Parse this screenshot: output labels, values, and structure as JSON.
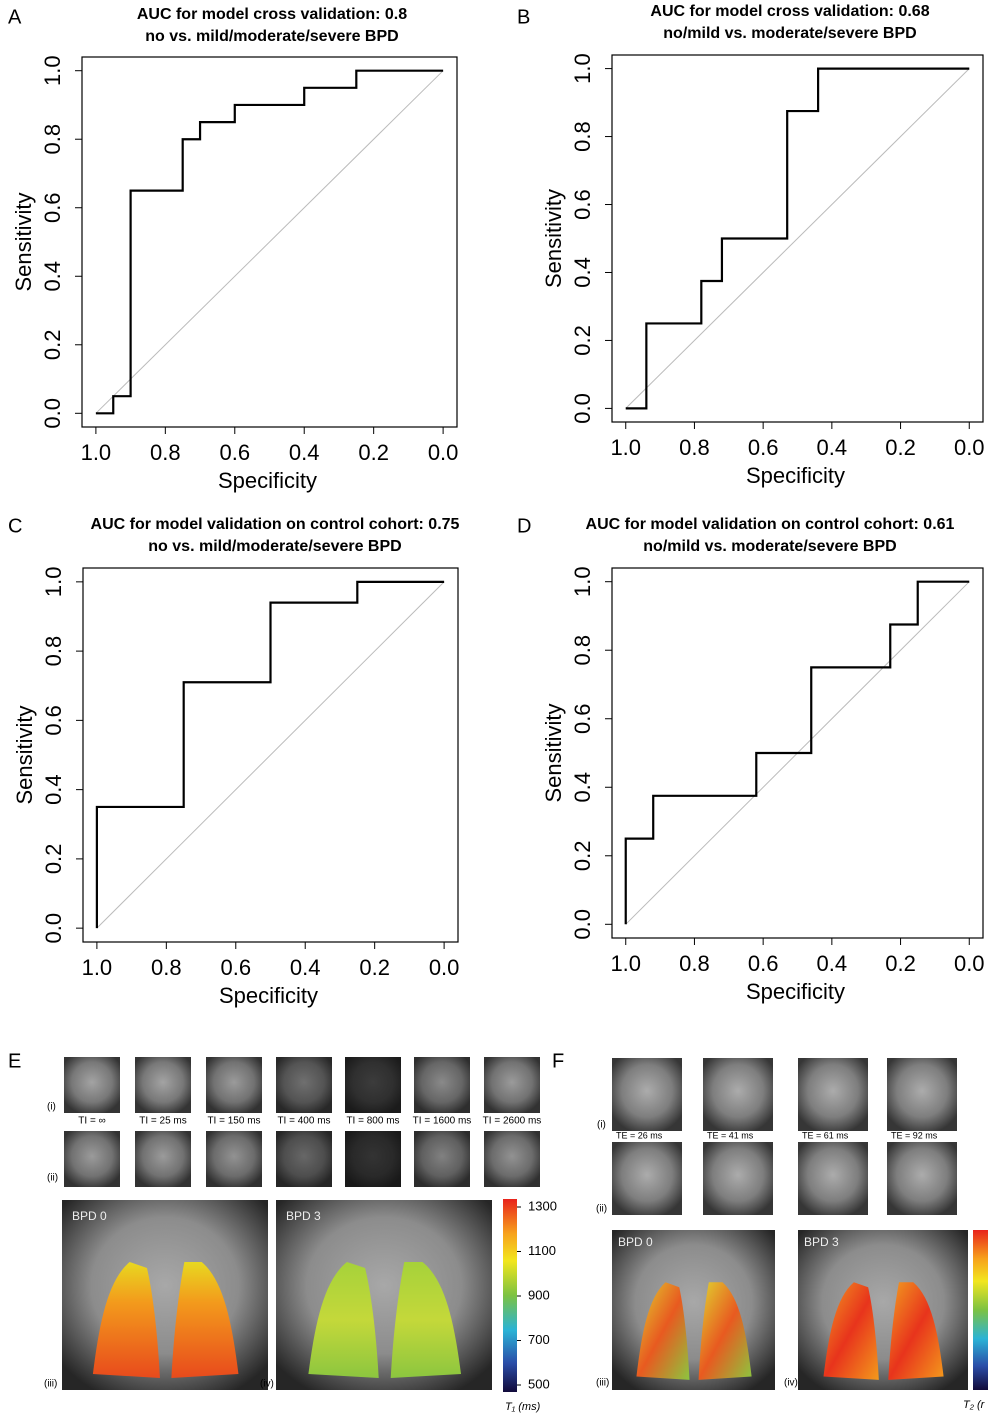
{
  "chart_data": [
    {
      "type": "line",
      "panel_label": "A",
      "title": "AUC for model cross validation:  0.8",
      "subtitle": "no vs. mild/moderate/severe BPD",
      "xlabel": "Specificity",
      "ylabel": "Sensitivity",
      "color": "#000000",
      "x": [
        1.0,
        0.95,
        0.95,
        0.9,
        0.9,
        0.75,
        0.75,
        0.7,
        0.7,
        0.6,
        0.6,
        0.4,
        0.4,
        0.25,
        0.25,
        0.0
      ],
      "values": [
        0.0,
        0.0,
        0.05,
        0.05,
        0.65,
        0.65,
        0.8,
        0.8,
        0.85,
        0.85,
        0.9,
        0.9,
        0.95,
        0.95,
        1.0,
        1.0
      ],
      "xlim": [
        1.04,
        -0.04
      ],
      "ylim": [
        -0.04,
        1.04
      ],
      "xticks": [
        {
          "value": 1,
          "label": "1.0"
        },
        0.8,
        0.6,
        0.4,
        0.2,
        {
          "value": 0,
          "label": "0.0"
        }
      ],
      "yticks": [
        {
          "value": 0,
          "label": "0.0"
        },
        0.2,
        0.4,
        0.6,
        0.8,
        {
          "value": 1,
          "label": "1.0"
        }
      ]
    },
    {
      "type": "line",
      "panel_label": "B",
      "title": "AUC for model cross validation:  0.68",
      "subtitle": "no/mild vs. moderate/severe BPD",
      "xlabel": "Specificity",
      "ylabel": "Sensitivity",
      "color": "#000000",
      "x": [
        1.0,
        0.94,
        0.94,
        0.78,
        0.78,
        0.72,
        0.72,
        0.53,
        0.53,
        0.44,
        0.44,
        0.0
      ],
      "values": [
        0.0,
        0.0,
        0.25,
        0.25,
        0.375,
        0.375,
        0.5,
        0.5,
        0.875,
        0.875,
        1.0,
        1.0
      ],
      "xlim": [
        1.04,
        -0.04
      ],
      "ylim": [
        -0.04,
        1.04
      ],
      "xticks": [
        {
          "value": 1,
          "label": "1.0"
        },
        0.8,
        0.6,
        0.4,
        0.2,
        {
          "value": 0,
          "label": "0.0"
        }
      ],
      "yticks": [
        {
          "value": 0,
          "label": "0.0"
        },
        0.2,
        0.4,
        0.6,
        0.8,
        {
          "value": 1,
          "label": "1.0"
        }
      ]
    },
    {
      "type": "line",
      "panel_label": "C",
      "title": "AUC for model validation on control cohort:  0.75",
      "subtitle": "no vs. mild/moderate/severe BPD",
      "xlabel": "Specificity",
      "ylabel": "Sensitivity",
      "color": "#000000",
      "x": [
        1.0,
        1.0,
        0.75,
        0.75,
        0.5,
        0.5,
        0.25,
        0.25,
        0.0
      ],
      "values": [
        0.0,
        0.35,
        0.35,
        0.71,
        0.71,
        0.94,
        0.94,
        1.0,
        1.0
      ],
      "xlim": [
        1.04,
        -0.04
      ],
      "ylim": [
        -0.04,
        1.04
      ],
      "xticks": [
        {
          "value": 1,
          "label": "1.0"
        },
        0.8,
        0.6,
        0.4,
        0.2,
        {
          "value": 0,
          "label": "0.0"
        }
      ],
      "yticks": [
        {
          "value": 0,
          "label": "0.0"
        },
        0.2,
        0.4,
        0.6,
        0.8,
        {
          "value": 1,
          "label": "1.0"
        }
      ]
    },
    {
      "type": "line",
      "panel_label": "D",
      "title": "AUC for model validation on control cohort:  0.61",
      "subtitle": "no/mild vs. moderate/severe BPD",
      "xlabel": "Specificity",
      "ylabel": "Sensitivity",
      "color": "#000000",
      "x": [
        1.0,
        1.0,
        0.92,
        0.92,
        0.62,
        0.62,
        0.46,
        0.46,
        0.23,
        0.23,
        0.15,
        0.15,
        0.0
      ],
      "values": [
        0.0,
        0.25,
        0.25,
        0.375,
        0.375,
        0.5,
        0.5,
        0.75,
        0.75,
        0.875,
        0.875,
        1.0,
        1.0
      ],
      "xlim": [
        1.04,
        -0.04
      ],
      "ylim": [
        -0.04,
        1.04
      ],
      "xticks": [
        {
          "value": 1,
          "label": "1.0"
        },
        0.8,
        0.6,
        0.4,
        0.2,
        {
          "value": 0,
          "label": "0.0"
        }
      ],
      "yticks": [
        {
          "value": 0,
          "label": "0.0"
        },
        0.2,
        0.4,
        0.6,
        0.8,
        {
          "value": 1,
          "label": "1.0"
        }
      ]
    }
  ],
  "panel_e": {
    "label": "E",
    "row_labels": [
      "(i)",
      "(ii)",
      "(iii)",
      "(iv)"
    ],
    "thumb_labels": [
      "TI = ∞",
      "TI = 25 ms",
      "TI = 150 ms",
      "TI = 400 ms",
      "TI = 800 ms",
      "TI = 1600 ms",
      "TI = 2600 ms"
    ],
    "map_labels": [
      "BPD 0",
      "BPD 3"
    ],
    "colorbar": {
      "ticks": [
        1300,
        1100,
        900,
        700,
        500
      ],
      "label": "T₁ (ms)"
    }
  },
  "panel_f": {
    "label": "F",
    "row_labels": [
      "(i)",
      "(ii)",
      "(iii)",
      "(iv)"
    ],
    "thumb_labels": [
      "TE = 26 ms",
      "TE = 41 ms",
      "TE = 61 ms",
      "TE = 92 ms"
    ],
    "map_labels": [
      "BPD 0",
      "BPD 3"
    ],
    "colorbar": {
      "label": "T₂ (r"
    }
  }
}
